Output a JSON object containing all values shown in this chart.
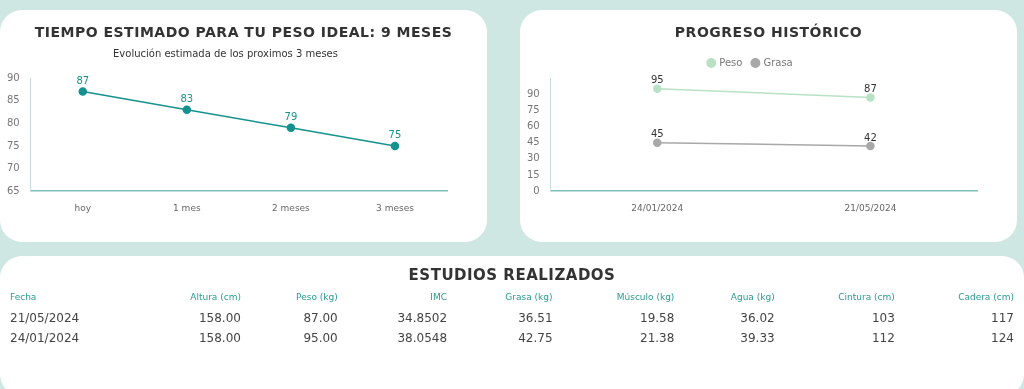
{
  "chart_data": [
    {
      "type": "line",
      "title": "TIEMPO ESTIMADO PARA TU PESO IDEAL: 9 MESES",
      "subtitle": "Evolución estimada de los proximos 3 meses",
      "categories": [
        "hoy",
        "1 mes",
        "2 meses",
        "3 meses"
      ],
      "values": [
        87,
        83,
        79,
        75
      ],
      "color": "#16928e",
      "ylim": [
        65,
        90
      ],
      "yticks": [
        65,
        70,
        75,
        80,
        85,
        90
      ],
      "grid": false,
      "legend": false,
      "marker": "circle",
      "data_labels": true
    },
    {
      "type": "line",
      "title": "PROGRESO HISTÓRICO",
      "categories": [
        "24/01/2024",
        "21/05/2024"
      ],
      "series": [
        {
          "name": "Peso",
          "color": "#b9e2c4",
          "values": [
            95,
            87
          ]
        },
        {
          "name": "Grasa",
          "color": "#a8a8a8",
          "values": [
            45,
            42
          ]
        }
      ],
      "ylim": [
        0,
        105
      ],
      "yticks": [
        0,
        15,
        30,
        45,
        60,
        75,
        90
      ],
      "grid": false,
      "legend": "top",
      "marker": "circle",
      "data_labels": true
    },
    {
      "type": "other",
      "title": "ESTUDIOS REALIZADOS",
      "annotations": [
        "Fecha",
        "Altura (cm)",
        "Peso (kg)",
        "IMC",
        "Grasa (kg)",
        "Músculo (kg)",
        "Agua (kg)",
        "Cintura (cm)",
        "Cadera (cm)",
        "21/05/2024",
        "158.00",
        "87.00",
        "34.8502",
        "36.51",
        "19.58",
        "36.02",
        "103",
        "117",
        "24/01/2024",
        "158.00",
        "95.00",
        "38.0548",
        "42.75",
        "21.38",
        "39.33",
        "112",
        "124"
      ]
    }
  ]
}
